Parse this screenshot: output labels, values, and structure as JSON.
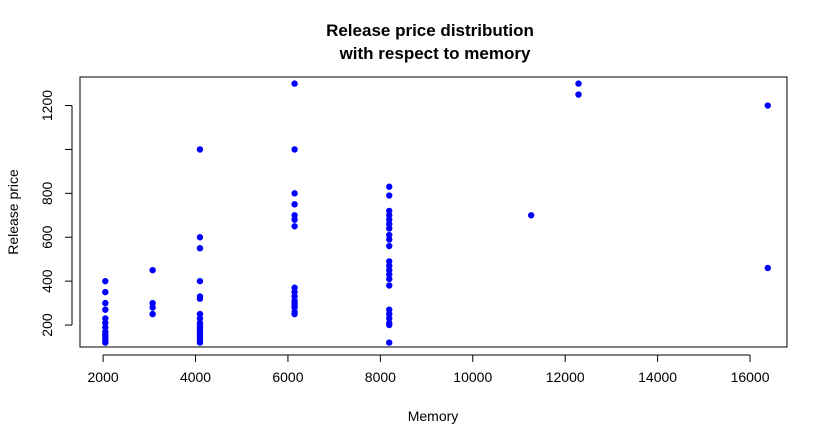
{
  "chart_data": {
    "type": "scatter",
    "title": [
      "Release price distribution",
      "with respect to memory"
    ],
    "xlabel": "Memory",
    "ylabel": "Release price",
    "xlim": [
      1500,
      16800
    ],
    "ylim": [
      100,
      1330
    ],
    "xticks": [
      2000,
      4000,
      6000,
      8000,
      10000,
      12000,
      14000,
      16000
    ],
    "yticks": [
      200,
      400,
      600,
      800,
      1000,
      1200
    ],
    "ytick_labels": [
      "200",
      "400",
      "600",
      "800",
      "",
      "1200"
    ],
    "grid": false,
    "legend": "none",
    "point_color": "#0000ff",
    "points": [
      [
        2048,
        400
      ],
      [
        2048,
        350
      ],
      [
        2048,
        300
      ],
      [
        2048,
        270
      ],
      [
        2048,
        230
      ],
      [
        2048,
        210
      ],
      [
        2048,
        190
      ],
      [
        2048,
        170
      ],
      [
        2048,
        160
      ],
      [
        2048,
        150
      ],
      [
        2048,
        140
      ],
      [
        2048,
        130
      ],
      [
        2048,
        120
      ],
      [
        3072,
        450
      ],
      [
        3072,
        300
      ],
      [
        3072,
        280
      ],
      [
        3072,
        250
      ],
      [
        4096,
        1000
      ],
      [
        4096,
        600
      ],
      [
        4096,
        550
      ],
      [
        4096,
        400
      ],
      [
        4096,
        330
      ],
      [
        4096,
        320
      ],
      [
        4096,
        250
      ],
      [
        4096,
        230
      ],
      [
        4096,
        210
      ],
      [
        4096,
        200
      ],
      [
        4096,
        190
      ],
      [
        4096,
        180
      ],
      [
        4096,
        170
      ],
      [
        4096,
        160
      ],
      [
        4096,
        150
      ],
      [
        4096,
        140
      ],
      [
        4096,
        130
      ],
      [
        4096,
        120
      ],
      [
        6144,
        1300
      ],
      [
        6144,
        1000
      ],
      [
        6144,
        800
      ],
      [
        6144,
        750
      ],
      [
        6144,
        700
      ],
      [
        6144,
        680
      ],
      [
        6144,
        650
      ],
      [
        6144,
        370
      ],
      [
        6144,
        350
      ],
      [
        6144,
        330
      ],
      [
        6144,
        310
      ],
      [
        6144,
        300
      ],
      [
        6144,
        290
      ],
      [
        6144,
        280
      ],
      [
        6144,
        260
      ],
      [
        6144,
        250
      ],
      [
        8192,
        830
      ],
      [
        8192,
        790
      ],
      [
        8192,
        720
      ],
      [
        8192,
        700
      ],
      [
        8192,
        680
      ],
      [
        8192,
        660
      ],
      [
        8192,
        640
      ],
      [
        8192,
        610
      ],
      [
        8192,
        590
      ],
      [
        8192,
        560
      ],
      [
        8192,
        490
      ],
      [
        8192,
        470
      ],
      [
        8192,
        450
      ],
      [
        8192,
        430
      ],
      [
        8192,
        410
      ],
      [
        8192,
        380
      ],
      [
        8192,
        270
      ],
      [
        8192,
        250
      ],
      [
        8192,
        230
      ],
      [
        8192,
        210
      ],
      [
        8192,
        200
      ],
      [
        8192,
        120
      ],
      [
        11264,
        700
      ],
      [
        12288,
        1300
      ],
      [
        12288,
        1250
      ],
      [
        16384,
        1200
      ],
      [
        16384,
        460
      ]
    ]
  }
}
